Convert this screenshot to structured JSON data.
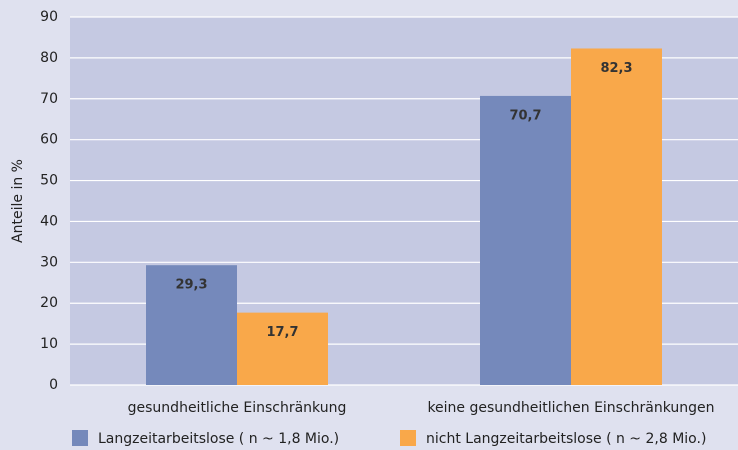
{
  "chart_data": {
    "type": "bar",
    "y_label": "Anteile in %",
    "categories": [
      "gesundheitliche Einschränkung",
      "keine gesundheitlichen Einschränkungen"
    ],
    "series": [
      {
        "name": "Langzeitarbeitslose ( n ~ 1,8 Mio.)",
        "color": "#7589bb",
        "values": [
          29.3,
          70.7
        ],
        "value_labels": [
          "29,3",
          "70,7"
        ]
      },
      {
        "name": "nicht Langzeitarbeitslose ( n ~ 2,8 Mio.)",
        "color": "#f9a84a",
        "values": [
          17.7,
          82.3
        ],
        "value_labels": [
          "17,7",
          "82,3"
        ]
      }
    ],
    "ylim": [
      0,
      90
    ],
    "yticks": [
      0,
      10,
      20,
      30,
      40,
      50,
      60,
      70,
      80,
      90
    ],
    "grid": true,
    "legend": "bottom"
  }
}
